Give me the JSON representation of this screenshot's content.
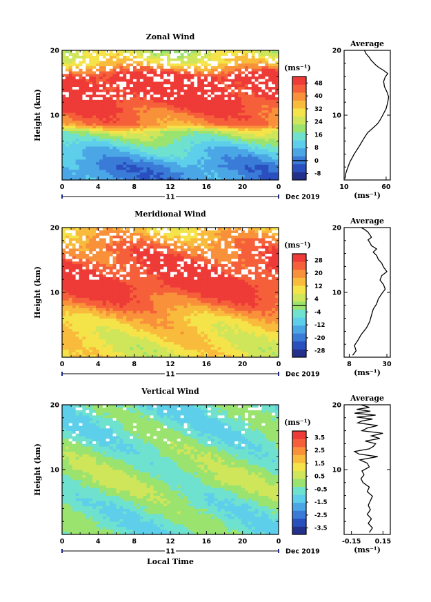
{
  "chart_data": [
    {
      "type": "heatmap",
      "title": "Zonal Wind",
      "ylabel": "Height (km)",
      "ylim": [
        0,
        20
      ],
      "yticks": [
        "10",
        "20"
      ],
      "xlim": [
        0,
        24
      ],
      "xticks": [
        "0",
        "4",
        "8",
        "12",
        "16",
        "20",
        "0"
      ],
      "day_label": "11",
      "date_label": "Dec 2019",
      "colorbar": {
        "unit": "(ms⁻¹)",
        "labels": [
          "48",
          "40",
          "32",
          "24",
          "16",
          "8",
          "0",
          "-8"
        ],
        "range": [
          -12,
          52
        ],
        "zero_line": 0,
        "colors": [
          "#23318c",
          "#2a4fbf",
          "#3a7bd8",
          "#4ba6e6",
          "#5ecfeb",
          "#6fe1cf",
          "#9be36f",
          "#cfe55a",
          "#f5e34a",
          "#f9bb3c",
          "#f8913a",
          "#f5603a",
          "#ee3b37"
        ]
      },
      "field": {
        "cmin": -12,
        "cmax": 52,
        "levels": [
          [
            2,
            2
          ],
          [
            5,
            12
          ],
          [
            7.5,
            24
          ],
          [
            8.5,
            40
          ],
          [
            13,
            52
          ],
          [
            16,
            52
          ],
          [
            18,
            32
          ],
          [
            20,
            24
          ]
        ],
        "missing_above_km": 12.5,
        "missing_density": 0.22
      },
      "profile": {
        "title": "Average",
        "xlim": [
          10,
          65
        ],
        "xticks": [
          "10",
          "60"
        ],
        "xlabel": "(ms⁻¹)",
        "x": [
          11,
          12,
          14,
          17,
          22,
          28,
          33,
          38,
          45,
          50,
          53,
          56,
          60,
          62,
          63,
          61,
          58,
          57,
          59,
          62,
          57,
          52,
          48,
          45,
          42,
          40,
          38,
          36,
          35,
          34
        ],
        "y": [
          0.2,
          1,
          1.8,
          2.8,
          4,
          5.2,
          6.3,
          7.3,
          8.1,
          8.7,
          9.3,
          10,
          11,
          12,
          12.8,
          13.6,
          14.4,
          15.2,
          15.9,
          16.4,
          16.9,
          17.3,
          17.7,
          18.1,
          18.5,
          18.9,
          19.2,
          19.5,
          19.8,
          20
        ]
      }
    },
    {
      "type": "heatmap",
      "title": "Meridional Wind",
      "ylabel": "Height (km)",
      "ylim": [
        0,
        20
      ],
      "yticks": [
        "10",
        "20"
      ],
      "xlim": [
        0,
        24
      ],
      "xticks": [
        "0",
        "4",
        "8",
        "12",
        "16",
        "20",
        "0"
      ],
      "day_label": "11",
      "date_label": "Dec 2019",
      "colorbar": {
        "unit": "(ms⁻¹)",
        "labels": [
          "28",
          "20",
          "12",
          "4",
          "-4",
          "-12",
          "-20",
          "-28"
        ],
        "range": [
          -32,
          32
        ],
        "zero_line": 0,
        "colors": [
          "#23318c",
          "#2a4fbf",
          "#3a7bd8",
          "#4ba6e6",
          "#5ecfeb",
          "#6fe1cf",
          "#9be36f",
          "#cfe55a",
          "#f5e34a",
          "#f9bb3c",
          "#f8913a",
          "#f5603a",
          "#ee3b37"
        ]
      },
      "field": {
        "cmin": -32,
        "cmax": 32,
        "levels": [
          [
            1,
            8
          ],
          [
            3,
            10
          ],
          [
            6,
            14
          ],
          [
            8,
            22
          ],
          [
            11,
            30
          ],
          [
            14,
            28
          ],
          [
            17,
            22
          ],
          [
            20,
            12
          ]
        ],
        "missing_above_km": 12,
        "missing_density": 0.2
      },
      "profile": {
        "title": "Average",
        "xlim": [
          5,
          32
        ],
        "xticks": [
          "8",
          "30"
        ],
        "xlabel": "(ms⁻¹)",
        "x": [
          10,
          12,
          11,
          13,
          15,
          18,
          20,
          21,
          22,
          24,
          25,
          27,
          29,
          28,
          26,
          27,
          30,
          28,
          27,
          25,
          24,
          22,
          24,
          21,
          20,
          19,
          21,
          20,
          19,
          17,
          15
        ],
        "y": [
          0.3,
          1,
          1.8,
          2.6,
          3.5,
          4.5,
          5.5,
          6.5,
          7.4,
          8.2,
          9,
          9.8,
          10.5,
          11.2,
          11.9,
          12.6,
          13.2,
          13.9,
          14.5,
          15.1,
          15.7,
          16.2,
          16.7,
          17.2,
          17.7,
          18.1,
          18.5,
          18.9,
          19.3,
          19.7,
          20
        ]
      }
    },
    {
      "type": "heatmap",
      "title": "Vertical Wind",
      "xlabel": "Local Time",
      "ylabel": "Height (km)",
      "ylim": [
        0,
        20
      ],
      "yticks": [
        "10",
        "20"
      ],
      "xlim": [
        0,
        24
      ],
      "xticks": [
        "0",
        "4",
        "8",
        "12",
        "16",
        "20",
        "0"
      ],
      "day_label": "11",
      "date_label": "Dec 2019",
      "colorbar": {
        "unit": "(ms⁻¹)",
        "labels": [
          "3.5",
          "2.5",
          "1.5",
          "0.5",
          "-0.5",
          "-1.5",
          "-2.5",
          "-3.5"
        ],
        "range": [
          -4,
          4
        ],
        "colors": [
          "#23318c",
          "#2a4fbf",
          "#3a7bd8",
          "#4ba6e6",
          "#5ecfeb",
          "#6fe1cf",
          "#9be36f",
          "#cfe55a",
          "#f5e34a",
          "#f9bb3c",
          "#f8913a",
          "#f5603a",
          "#ee3b37"
        ]
      },
      "field": {
        "cmin": -4,
        "cmax": 4,
        "levels": [
          [
            0,
            -0.6
          ],
          [
            5,
            -0.4
          ],
          [
            8,
            0.1
          ],
          [
            12,
            -0.2
          ],
          [
            16,
            -0.6
          ],
          [
            20,
            -0.7
          ]
        ],
        "missing_above_km": 13,
        "missing_density": 0.05
      },
      "profile": {
        "title": "Average",
        "xlim": [
          -0.22,
          0.22
        ],
        "xticks": [
          "-0.15",
          "0.15"
        ],
        "xlabel": "(ms⁻¹)",
        "x": [
          0.02,
          0.05,
          0.01,
          0.04,
          0.0,
          0.03,
          0.01,
          0.03,
          0.05,
          0.0,
          0.02,
          -0.04,
          -0.06,
          -0.03,
          -0.05,
          0.02,
          0.0,
          -0.07,
          0.1,
          -0.08,
          -0.12,
          0.02,
          0.06,
          0.08,
          -0.02,
          0.12,
          0.04,
          0.15,
          -0.05,
          0.0,
          0.1,
          -0.09,
          -0.05,
          0.05,
          -0.1,
          0.08,
          -0.12,
          0.03,
          -0.1,
          0.02,
          -0.06
        ],
        "y": [
          0.3,
          1,
          1.7,
          2.4,
          3.1,
          3.8,
          4.5,
          5.2,
          5.9,
          6.6,
          7.3,
          8,
          8.6,
          9.2,
          9.8,
          10.4,
          11,
          11.5,
          12,
          12.4,
          12.8,
          13.2,
          13.6,
          14,
          14.4,
          14.8,
          15.2,
          15.6,
          16,
          16.4,
          16.8,
          17.2,
          17.5,
          17.8,
          18.1,
          18.4,
          18.7,
          19,
          19.3,
          19.6,
          20
        ]
      }
    }
  ]
}
